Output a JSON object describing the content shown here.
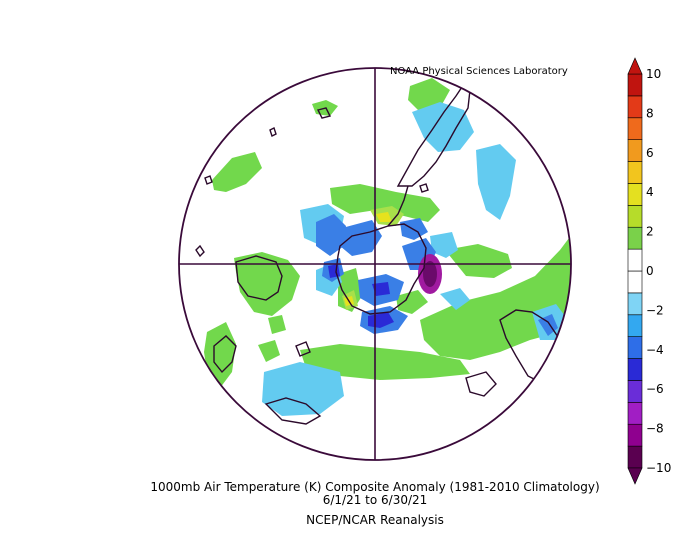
{
  "credit": "NOAA Physical Sciences Laboratory",
  "caption": {
    "line1": "1000mb Air Temperature (K) Composite Anomaly (1981-2010 Climatology)",
    "line2": "6/1/21  to 6/30/21",
    "line3": "NCEP/NCAR Reanalysis"
  },
  "projection": "south-polar-stereographic",
  "colorbar": {
    "min": -10,
    "max": 10,
    "ticks": [
      "10",
      "8",
      "6",
      "4",
      "2",
      "0",
      "−2",
      "−4",
      "−6",
      "−8",
      "−10"
    ],
    "colors": [
      "#5a0050",
      "#8f008f",
      "#a11ec4",
      "#6a2dd8",
      "#2a2ad6",
      "#2e6ee8",
      "#33a8f0",
      "#7fd4f5",
      "#ffffff",
      "#ffffff",
      "#7ad14a",
      "#b6dc2a",
      "#e4e020",
      "#f2c51e",
      "#f19a1e",
      "#ef6a1c",
      "#e33a18",
      "#c0140f"
    ]
  },
  "colors": {
    "frame": "#3a0a3a",
    "land": "#2b0a2b",
    "green": "#72d84c",
    "lightgreen": "#a8e04a",
    "yellow": "#e6e21e",
    "cyan": "#63cbf0",
    "blue": "#3a7fe6",
    "darkblue": "#2a2ad6",
    "purple": "#7a0a8a",
    "magenta": "#a0128c"
  }
}
